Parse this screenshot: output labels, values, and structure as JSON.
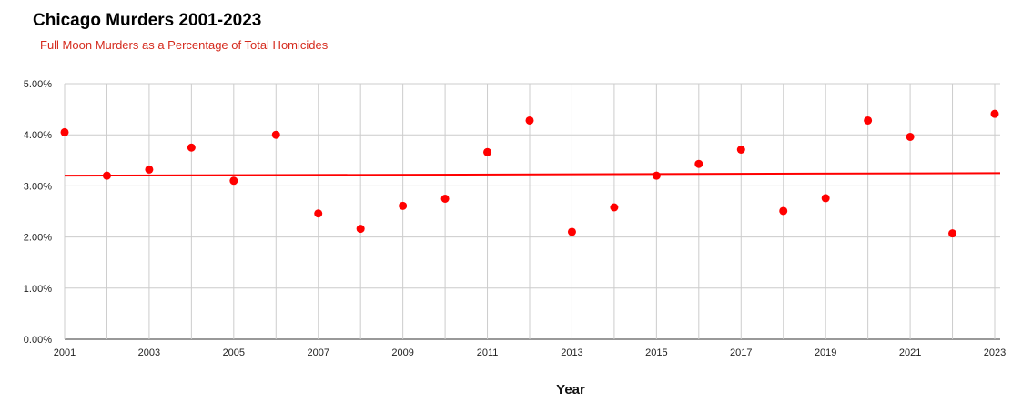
{
  "title": "Chicago Murders 2001-2023",
  "subtitle": "Full Moon Murders as a Percentage of Total Homicides",
  "colors": {
    "marker": "#ff0000",
    "trendline": "#ff0000",
    "subtitle": "#d52b1e",
    "grid": "#cccccc"
  },
  "chart_data": {
    "type": "scatter",
    "title": "Chicago Murders 2001-2023",
    "subtitle": "Full Moon Murders as a Percentage of Total Homicides",
    "xlabel": "Year",
    "ylabel": "",
    "xlim": [
      2001,
      2023
    ],
    "ylim": [
      0,
      0.05
    ],
    "x_ticks": [
      "2001",
      "2003",
      "2005",
      "2007",
      "2009",
      "2011",
      "2013",
      "2015",
      "2017",
      "2019",
      "2021",
      "2023"
    ],
    "y_ticks": [
      "0.00%",
      "1.00%",
      "2.00%",
      "3.00%",
      "4.00%",
      "5.00%"
    ],
    "grid": true,
    "legend": "none",
    "series": [
      {
        "x": [
          2001,
          2002,
          2003,
          2004,
          2005,
          2006,
          2007,
          2008,
          2009,
          2010,
          2011,
          2012,
          2013,
          2014,
          2015,
          2016,
          2017,
          2018,
          2019,
          2020,
          2021,
          2022,
          2023
        ],
        "y": [
          0.0405,
          0.032,
          0.0332,
          0.0375,
          0.031,
          0.04,
          0.0246,
          0.0216,
          0.0261,
          0.0275,
          0.0366,
          0.0428,
          0.021,
          0.0258,
          0.032,
          0.0343,
          0.0371,
          0.0251,
          0.0276,
          0.0428,
          0.0396,
          0.0207,
          0.0441
        ]
      }
    ],
    "trendline": {
      "type": "linear",
      "x": [
        2001,
        2023
      ],
      "y": [
        0.032,
        0.0325
      ]
    }
  }
}
